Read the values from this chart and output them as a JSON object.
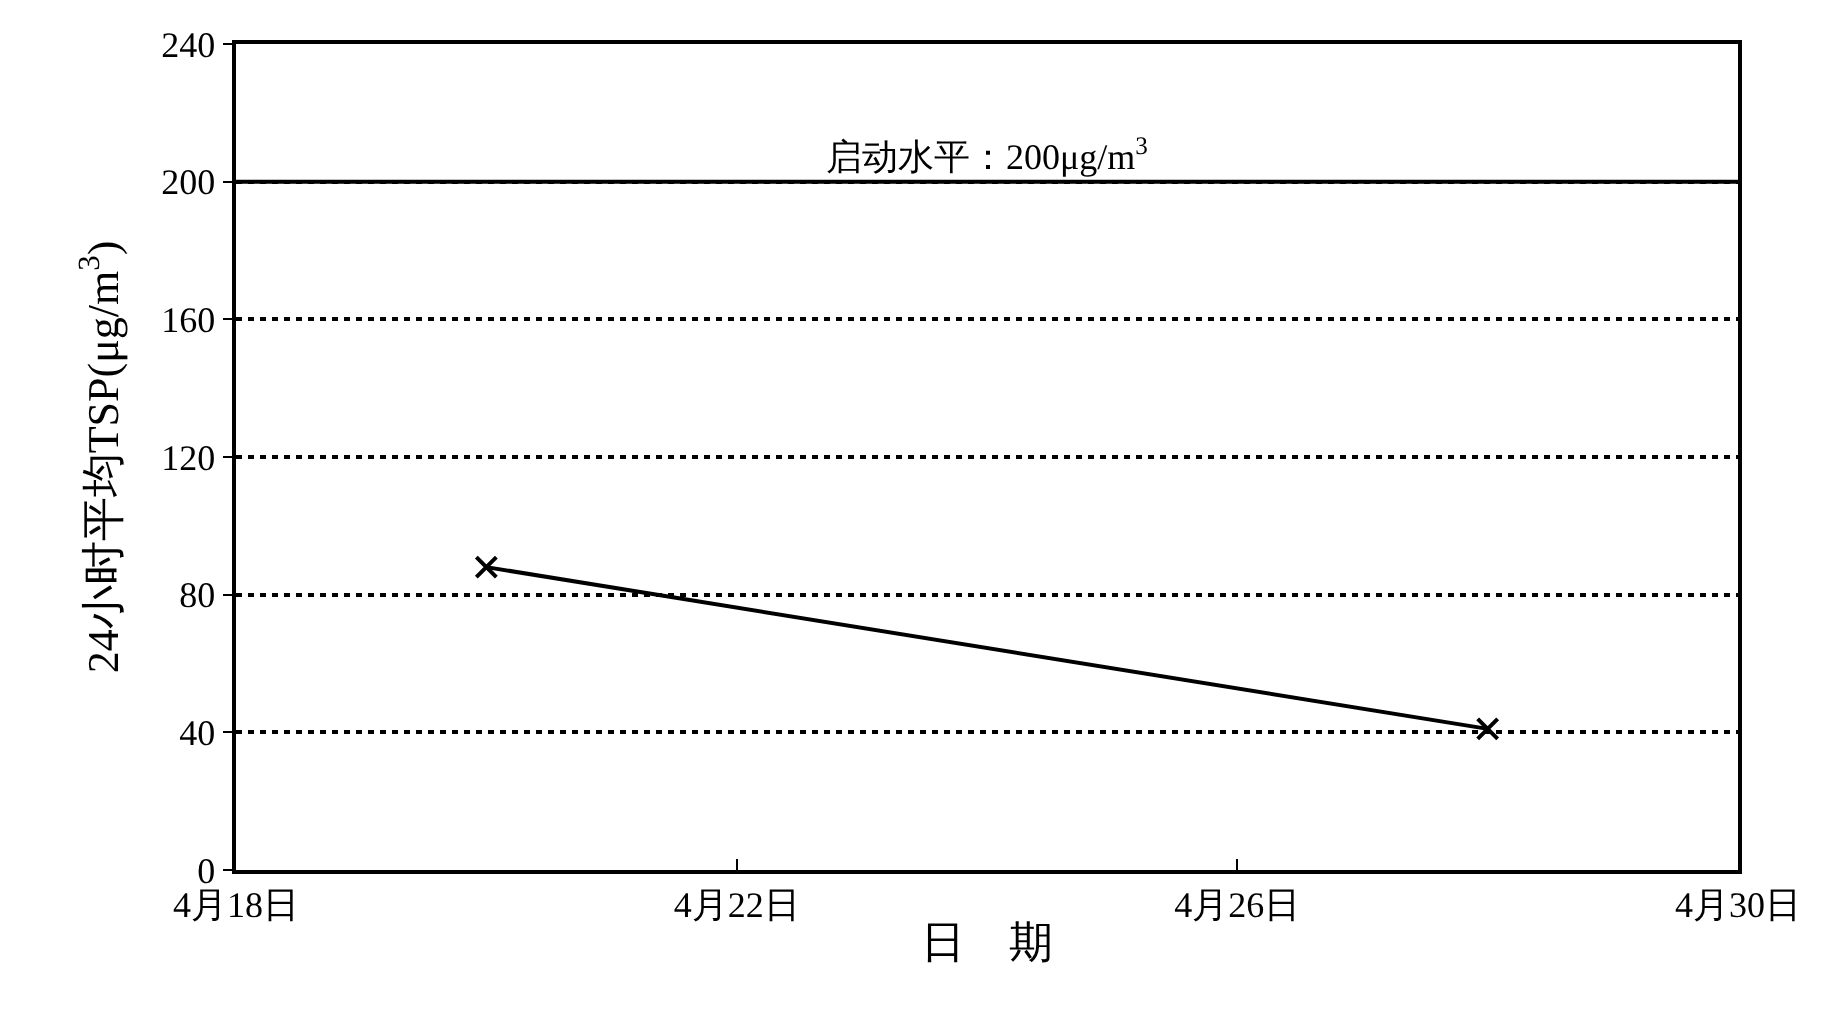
{
  "chart_data": {
    "type": "line",
    "xlabel": "日　期",
    "ylabel": "24小时平均TSP(μg/m$^{3}$)",
    "x": [
      "--04-20",
      "--04-28"
    ],
    "series": [
      {
        "color": "#000000",
        "values": [
          88,
          41
        ]
      }
    ],
    "xlim": [
      "--04-18",
      "--04-30"
    ],
    "xticks": [
      {
        "value": "--04-18",
        "label": "4月18日"
      },
      {
        "value": "--04-22",
        "label": "4月22日"
      },
      {
        "value": "--04-26",
        "label": "4月26日"
      },
      {
        "value": "--04-30",
        "label": "4月30日"
      }
    ],
    "ylim": [
      0,
      240
    ],
    "yticks": [
      0,
      40,
      80,
      120,
      160,
      200,
      240
    ],
    "grid": "y",
    "legend": false,
    "marker": "cross",
    "line_style": "solid",
    "ref_lines": [
      {
        "axis": "y",
        "value": 200,
        "label": "启动水平：200μg/m$^{3}$",
        "color": "#000000",
        "line_style": "solid"
      }
    ]
  }
}
